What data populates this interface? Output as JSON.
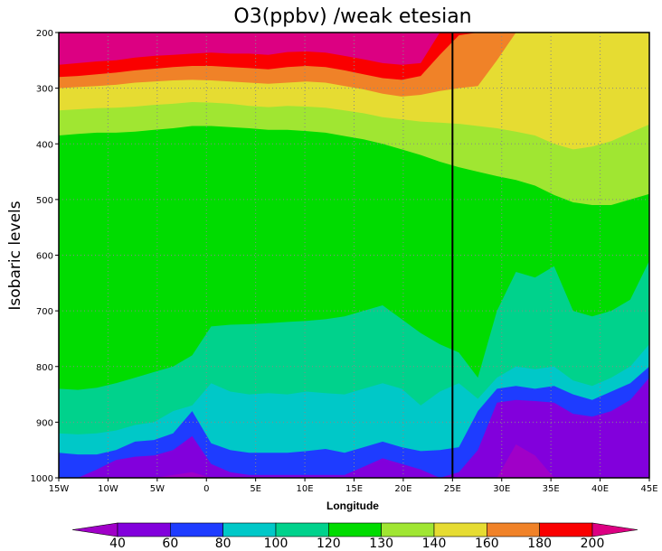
{
  "chart_data": {
    "type": "contour",
    "title": "O3(ppbv) /weak etesian",
    "xlabel": "Longitude",
    "ylabel": "Isobaric levels",
    "x_ticks": [
      "15W",
      "10W",
      "5W",
      "0",
      "5E",
      "10E",
      "15E",
      "20E",
      "25E",
      "30E",
      "35E",
      "40E",
      "45E"
    ],
    "x_values": [
      -15,
      -10,
      -5,
      0,
      5,
      10,
      15,
      20,
      25,
      30,
      35,
      40,
      45
    ],
    "xlim": [
      -15,
      45
    ],
    "y_ticks": [
      "200",
      "300",
      "400",
      "500",
      "600",
      "700",
      "800",
      "900",
      "1000"
    ],
    "ylim": [
      1000,
      200
    ],
    "grid": true,
    "vertical_line_x": 25,
    "levels": [
      40,
      60,
      80,
      100,
      120,
      130,
      140,
      160,
      180,
      200
    ],
    "level_labels": [
      "40",
      "60",
      "80",
      "100",
      "120",
      "130",
      "140",
      "160",
      "180",
      "200"
    ],
    "band_colors": [
      "#a000c8",
      "#8200dc",
      "#1e3cff",
      "#00c8c8",
      "#00d28c",
      "#00dc00",
      "#a0e632",
      "#e6dc32",
      "#f08228",
      "#fa0000",
      "#dc0082"
    ],
    "contours": [
      {
        "level": 200,
        "pressure": [
          258,
          255,
          252,
          250,
          245,
          242,
          240,
          238,
          236,
          238,
          238,
          240,
          235,
          234,
          236,
          242,
          248,
          255,
          258,
          255,
          200,
          200,
          200,
          200,
          200,
          200,
          200,
          200,
          200,
          200,
          200,
          200
        ]
      },
      {
        "level": 180,
        "pressure": [
          280,
          278,
          275,
          272,
          268,
          265,
          262,
          260,
          260,
          262,
          264,
          266,
          262,
          260,
          262,
          268,
          275,
          282,
          285,
          278,
          240,
          205,
          200,
          200,
          200,
          200,
          200,
          200,
          200,
          200,
          200,
          200
        ]
      },
      {
        "level": 160,
        "pressure": [
          300,
          298,
          296,
          294,
          290,
          288,
          286,
          285,
          286,
          288,
          290,
          292,
          290,
          288,
          290,
          296,
          302,
          310,
          315,
          312,
          305,
          300,
          296,
          250,
          200,
          200,
          200,
          200,
          200,
          200,
          200,
          200
        ]
      },
      {
        "level": 140,
        "pressure": [
          340,
          338,
          336,
          335,
          333,
          330,
          328,
          325,
          326,
          328,
          332,
          334,
          332,
          333,
          335,
          340,
          345,
          352,
          356,
          360,
          362,
          364,
          368,
          372,
          378,
          385,
          400,
          410,
          405,
          395,
          380,
          365
        ]
      },
      {
        "level": 130,
        "pressure": [
          385,
          382,
          380,
          380,
          378,
          375,
          372,
          368,
          368,
          370,
          372,
          375,
          375,
          377,
          380,
          386,
          392,
          400,
          410,
          420,
          432,
          442,
          450,
          458,
          465,
          475,
          492,
          505,
          510,
          510,
          500,
          490
        ]
      },
      {
        "level": 120,
        "pressure": [
          840,
          842,
          838,
          830,
          820,
          810,
          800,
          780,
          728,
          725,
          724,
          722,
          720,
          718,
          715,
          710,
          700,
          690,
          715,
          740,
          760,
          775,
          820,
          700,
          630,
          640,
          620,
          700,
          710,
          700,
          680,
          610
        ]
      },
      {
        "level": 100,
        "pressure": [
          920,
          922,
          920,
          915,
          905,
          900,
          880,
          870,
          830,
          845,
          850,
          848,
          850,
          845,
          848,
          850,
          840,
          830,
          840,
          870,
          845,
          830,
          858,
          820,
          800,
          805,
          800,
          825,
          835,
          820,
          800,
          760
        ]
      },
      {
        "level": 80,
        "pressure": [
          955,
          958,
          958,
          950,
          935,
          932,
          920,
          880,
          938,
          950,
          955,
          955,
          955,
          952,
          948,
          955,
          945,
          935,
          945,
          952,
          950,
          945,
          880,
          840,
          835,
          840,
          835,
          850,
          860,
          845,
          830,
          800
        ]
      },
      {
        "level": 60,
        "pressure": [
          1000,
          1000,
          985,
          968,
          962,
          960,
          950,
          925,
          975,
          990,
          995,
          995,
          995,
          995,
          995,
          995,
          980,
          965,
          975,
          985,
          1000,
          990,
          950,
          865,
          860,
          862,
          865,
          885,
          890,
          880,
          860,
          820
        ]
      },
      {
        "level": 40,
        "pressure": [
          1000,
          1000,
          1000,
          1000,
          1000,
          1000,
          995,
          990,
          1000,
          1000,
          1000,
          1000,
          1000,
          1000,
          1000,
          1000,
          1000,
          1000,
          1000,
          1000,
          1000,
          1000,
          1000,
          1000,
          940,
          960,
          1000,
          1000,
          1000,
          1000,
          1000,
          1000
        ]
      }
    ]
  }
}
